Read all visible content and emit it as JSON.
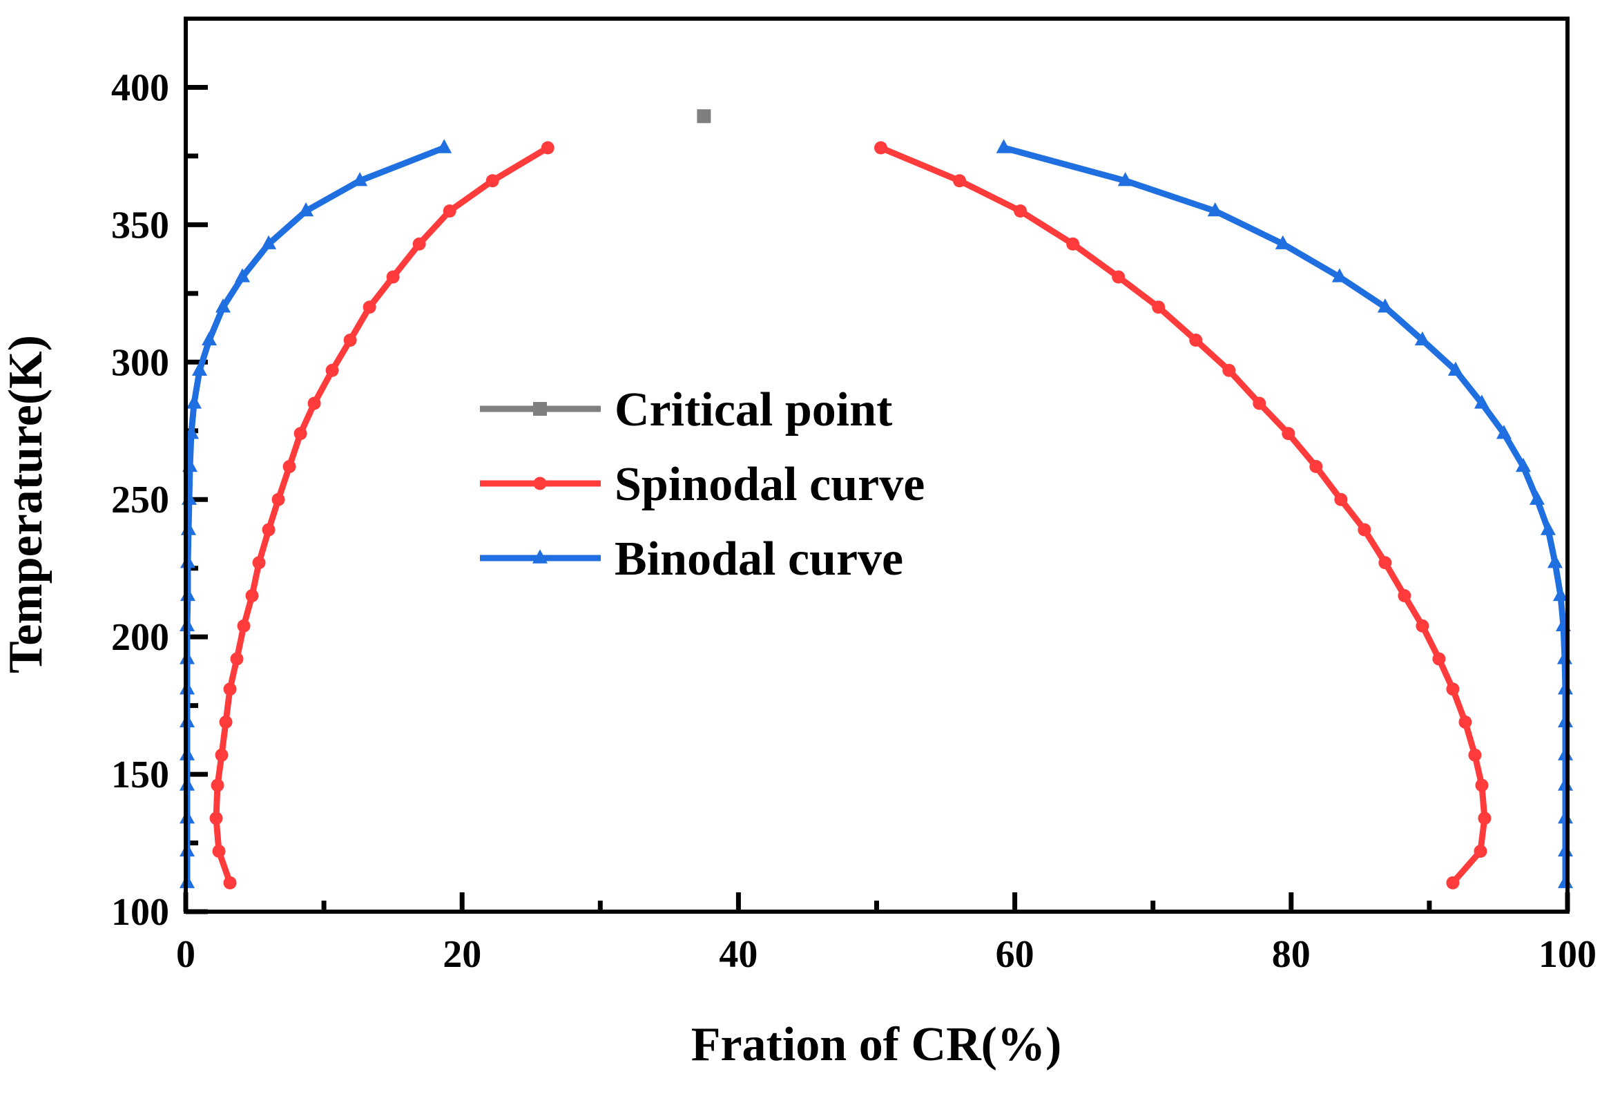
{
  "chart_data": {
    "type": "line",
    "title": "",
    "xlabel": "Fration of CR(%)",
    "ylabel": "Temperature(K)",
    "xlim": [
      0,
      100
    ],
    "ylim": [
      100,
      425
    ],
    "xticks": [
      0,
      20,
      40,
      60,
      80,
      100
    ],
    "yticks": [
      100,
      150,
      200,
      250,
      300,
      350,
      400
    ],
    "xtick_labels": [
      "0",
      "20",
      "40",
      "60",
      "80",
      "100"
    ],
    "ytick_labels": [
      "100",
      "150",
      "200",
      "250",
      "300",
      "350",
      "400"
    ],
    "grid": false,
    "legend_position": "center-left",
    "series": [
      {
        "name": "Critical point",
        "color": "#7f7f7f",
        "marker": "square",
        "points": [
          [
            37.5,
            389.5
          ]
        ]
      },
      {
        "name": "Spinodal curve",
        "color": "#ff3b3b",
        "marker": "circle",
        "segments": [
          [
            [
              3.2,
              110.5
            ],
            [
              2.4,
              122
            ],
            [
              2.2,
              134
            ],
            [
              2.3,
              146
            ],
            [
              2.6,
              157
            ],
            [
              2.9,
              169
            ],
            [
              3.2,
              181
            ],
            [
              3.7,
              192
            ],
            [
              4.2,
              204
            ],
            [
              4.8,
              215
            ],
            [
              5.3,
              227
            ],
            [
              6.0,
              239
            ],
            [
              6.7,
              250
            ],
            [
              7.5,
              262
            ],
            [
              8.3,
              274
            ],
            [
              9.3,
              285
            ],
            [
              10.6,
              297
            ],
            [
              11.9,
              308
            ],
            [
              13.3,
              320
            ],
            [
              15.0,
              331
            ],
            [
              16.9,
              343
            ],
            [
              19.1,
              355
            ],
            [
              22.2,
              366
            ],
            [
              26.2,
              378
            ]
          ],
          [
            [
              50.3,
              378
            ],
            [
              56.0,
              366
            ],
            [
              60.4,
              355
            ],
            [
              64.2,
              343
            ],
            [
              67.5,
              331
            ],
            [
              70.4,
              320
            ],
            [
              73.1,
              308
            ],
            [
              75.5,
              297
            ],
            [
              77.7,
              285
            ],
            [
              79.8,
              274
            ],
            [
              81.8,
              262
            ],
            [
              83.6,
              250
            ],
            [
              85.3,
              239
            ],
            [
              86.8,
              227
            ],
            [
              88.2,
              215
            ],
            [
              89.5,
              204
            ],
            [
              90.7,
              192
            ],
            [
              91.7,
              181
            ],
            [
              92.6,
              169
            ],
            [
              93.3,
              157
            ],
            [
              93.8,
              146
            ],
            [
              94.0,
              134
            ],
            [
              93.7,
              122
            ],
            [
              91.7,
              110.5
            ]
          ]
        ]
      },
      {
        "name": "Binodal curve",
        "color": "#1f6fe0",
        "marker": "triangle",
        "segments": [
          [
            [
              0.1,
              110.5
            ],
            [
              0.1,
              122
            ],
            [
              0.1,
              134
            ],
            [
              0.1,
              146
            ],
            [
              0.1,
              157
            ],
            [
              0.1,
              169
            ],
            [
              0.1,
              181
            ],
            [
              0.1,
              192
            ],
            [
              0.1,
              204
            ],
            [
              0.15,
              215
            ],
            [
              0.15,
              227
            ],
            [
              0.2,
              239
            ],
            [
              0.25,
              250
            ],
            [
              0.3,
              262
            ],
            [
              0.4,
              274
            ],
            [
              0.6,
              285
            ],
            [
              1.0,
              297
            ],
            [
              1.7,
              308
            ],
            [
              2.7,
              320
            ],
            [
              4.1,
              331
            ],
            [
              6.0,
              343
            ],
            [
              8.7,
              355
            ],
            [
              12.6,
              366
            ],
            [
              18.7,
              378
            ]
          ],
          [
            [
              59.2,
              378
            ],
            [
              68.0,
              366
            ],
            [
              74.5,
              355
            ],
            [
              79.4,
              343
            ],
            [
              83.5,
              331
            ],
            [
              86.8,
              320
            ],
            [
              89.5,
              308
            ],
            [
              91.9,
              297
            ],
            [
              93.8,
              285
            ],
            [
              95.4,
              274
            ],
            [
              96.8,
              262
            ],
            [
              97.8,
              250
            ],
            [
              98.6,
              239
            ],
            [
              99.1,
              227
            ],
            [
              99.5,
              215
            ],
            [
              99.7,
              204
            ],
            [
              99.8,
              192
            ],
            [
              99.85,
              181
            ],
            [
              99.85,
              169
            ],
            [
              99.85,
              157
            ],
            [
              99.85,
              146
            ],
            [
              99.85,
              134
            ],
            [
              99.85,
              122
            ],
            [
              99.85,
              110.5
            ]
          ]
        ]
      }
    ]
  }
}
